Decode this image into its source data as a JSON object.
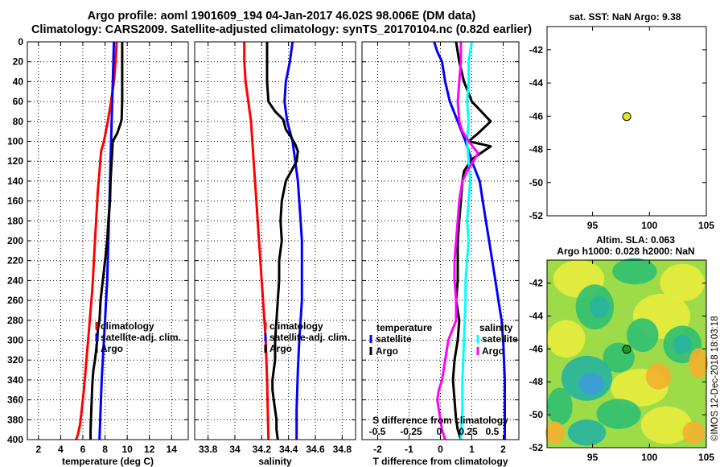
{
  "titles": {
    "line1": "Argo profile: aoml 1901609_194 04-Jan-2017 46.02S 98.006E (DM data)",
    "line2": "Climatology: CARS2009. Satellite-adjusted climatology: synTS_20170104.nc (0.82d earlier)"
  },
  "chart_data": [
    {
      "id": "temperature",
      "type": "line",
      "xlabel": "temperature (deg C)",
      "ylabel": "",
      "xlim": [
        1,
        15.5
      ],
      "ylim": [
        0,
        400
      ],
      "xticks": [
        2,
        4,
        6,
        8,
        10,
        12,
        14
      ],
      "yticks": [
        0,
        20,
        40,
        60,
        80,
        100,
        120,
        140,
        160,
        180,
        200,
        220,
        240,
        260,
        280,
        300,
        320,
        340,
        360,
        380,
        400
      ],
      "grid": true,
      "legend": {
        "placement": "center-right",
        "entries": [
          "climatology",
          "satellite-adj. clim.",
          "Argo"
        ],
        "colors": [
          "#ff0000",
          "#0000ff",
          "#000000"
        ]
      },
      "series": [
        {
          "name": "climatology",
          "color": "#ff0000",
          "x": [
            9.05,
            8.95,
            8.8,
            8.55,
            8.25,
            7.9,
            7.65,
            7.5,
            7.35,
            7.25,
            7.15,
            7.05,
            6.95,
            6.85,
            6.7,
            6.55,
            6.4,
            6.25,
            6.1,
            5.9,
            5.75,
            5.55,
            5.4
          ],
          "y": [
            0,
            20,
            40,
            60,
            80,
            100,
            110,
            130,
            150,
            170,
            190,
            210,
            230,
            250,
            270,
            290,
            310,
            330,
            350,
            370,
            385,
            395,
            400
          ]
        },
        {
          "name": "satellite-adj. clim.",
          "color": "#0000ff",
          "x": [
            8.8,
            8.75,
            8.7,
            8.65,
            8.6,
            8.55,
            8.5,
            8.45,
            8.4,
            8.35,
            8.3,
            8.25,
            8.2,
            8.1,
            8.0,
            7.9,
            7.8,
            7.7,
            7.6,
            7.5
          ],
          "y": [
            0,
            20,
            40,
            60,
            80,
            100,
            120,
            140,
            160,
            180,
            200,
            220,
            240,
            260,
            280,
            300,
            320,
            340,
            370,
            400
          ]
        },
        {
          "name": "Argo",
          "color": "#000000",
          "x": [
            9.55,
            9.55,
            9.55,
            9.55,
            9.5,
            9.4,
            9.1,
            8.7,
            8.6,
            8.5,
            8.45,
            8.3,
            8.2,
            8.0,
            7.8,
            7.6,
            7.5,
            7.35,
            7.3,
            7.2,
            7.1,
            6.95,
            6.85,
            6.8,
            6.75,
            6.7,
            6.7
          ],
          "y": [
            0,
            20,
            40,
            60,
            78,
            82,
            92,
            100,
            120,
            140,
            160,
            180,
            200,
            220,
            240,
            260,
            280,
            290,
            300,
            310,
            320,
            330,
            345,
            360,
            375,
            390,
            400
          ]
        }
      ]
    },
    {
      "id": "salinity",
      "type": "line",
      "xlabel": "salinity",
      "ylabel": "",
      "xlim": [
        33.7,
        34.9
      ],
      "ylim": [
        0,
        400
      ],
      "xticks": [
        33.8,
        34,
        34.2,
        34.4,
        34.6,
        34.8
      ],
      "grid": true,
      "legend": {
        "placement": "center-right",
        "entries": [
          "climatology",
          "satellite-adj. clim.",
          "Argo"
        ],
        "colors": [
          "#ff0000",
          "#0000ff",
          "#000000"
        ]
      },
      "series": [
        {
          "name": "climatology",
          "color": "#ff0000",
          "x": [
            34.07,
            34.07,
            34.08,
            34.1,
            34.12,
            34.13,
            34.14,
            34.15,
            34.16,
            34.17,
            34.18,
            34.19,
            34.2,
            34.21,
            34.22,
            34.23,
            34.24,
            34.25
          ],
          "y": [
            0,
            20,
            40,
            60,
            80,
            100,
            120,
            140,
            160,
            180,
            200,
            220,
            240,
            260,
            280,
            300,
            340,
            400
          ]
        },
        {
          "name": "satellite-adj. clim.",
          "color": "#0000ff",
          "x": [
            34.43,
            34.41,
            34.38,
            34.37,
            34.39,
            34.43,
            34.45,
            34.47,
            34.48,
            34.49,
            34.5,
            34.5,
            34.5,
            34.5,
            34.49,
            34.48,
            34.47,
            34.46,
            34.46
          ],
          "y": [
            0,
            20,
            40,
            60,
            80,
            100,
            120,
            140,
            160,
            180,
            200,
            220,
            240,
            260,
            280,
            300,
            330,
            370,
            400
          ]
        },
        {
          "name": "Argo",
          "color": "#000000",
          "x": [
            34.24,
            34.24,
            34.24,
            34.24,
            34.25,
            34.3,
            34.36,
            34.38,
            34.4,
            34.42,
            34.45,
            34.47,
            34.46,
            34.42,
            34.38,
            34.35,
            34.34,
            34.35,
            34.33,
            34.33,
            34.32,
            34.31,
            34.3,
            34.3,
            34.29,
            34.28,
            34.28,
            34.29,
            34.3,
            34.31,
            34.31,
            34.32
          ],
          "y": [
            0,
            10,
            20,
            40,
            60,
            70,
            78,
            88,
            92,
            96,
            103,
            110,
            120,
            130,
            140,
            160,
            180,
            200,
            220,
            240,
            260,
            280,
            300,
            320,
            330,
            340,
            350,
            360,
            370,
            380,
            390,
            400
          ]
        }
      ]
    },
    {
      "id": "difference",
      "type": "line",
      "xlabel": "T difference from climatology",
      "ylabel": "",
      "x2label": "S difference from climatology",
      "xlim": [
        -2.5,
        2.5
      ],
      "ylim": [
        0,
        400
      ],
      "xticks": [
        -2,
        -1,
        0,
        1,
        2
      ],
      "x2ticks": [
        "-0.5",
        "-0.25",
        "0",
        "0.25",
        "0.5"
      ],
      "grid": true,
      "legend_temperature": {
        "placement": "center-left",
        "heading": "temperature",
        "entries": [
          "satellite",
          "Argo"
        ],
        "colors": [
          "#0000ff",
          "#000000"
        ]
      },
      "legend_salinity": {
        "placement": "center-right",
        "heading": "salinity",
        "entries": [
          "satellite",
          "Argo"
        ],
        "colors": [
          "#00ffff",
          "#ff00ff"
        ]
      },
      "series": [
        {
          "name": "temperature satellite",
          "color": "#0000ff",
          "x": [
            -0.2,
            -0.1,
            0.05,
            0.15,
            0.3,
            0.55,
            0.8,
            1.0,
            1.25,
            1.35,
            1.45,
            1.55,
            1.65,
            1.75,
            1.85,
            1.95,
            2.0,
            2.05,
            2.05
          ],
          "y": [
            0,
            10,
            20,
            40,
            60,
            80,
            100,
            120,
            140,
            160,
            180,
            200,
            220,
            240,
            260,
            280,
            300,
            340,
            400
          ]
        },
        {
          "name": "temperature Argo",
          "color": "#000000",
          "x": [
            0.5,
            0.6,
            0.75,
            1.0,
            1.3,
            1.6,
            1.2,
            0.9,
            1.6,
            1.0,
            0.75,
            0.7,
            0.65,
            0.6,
            0.55,
            0.55,
            0.55,
            0.5,
            0.6,
            0.55,
            0.5,
            0.45,
            0.4,
            0.45,
            0.5,
            0.55,
            0.65
          ],
          "y": [
            0,
            20,
            40,
            60,
            70,
            80,
            92,
            100,
            105,
            118,
            130,
            140,
            160,
            180,
            200,
            220,
            240,
            260,
            280,
            300,
            310,
            320,
            340,
            360,
            380,
            390,
            400
          ]
        },
        {
          "name": "salinity satellite",
          "color": "#00ffff",
          "x": [
            1.0,
            0.9,
            0.9,
            0.85,
            0.9,
            0.85,
            0.9,
            0.95,
            0.9,
            0.85,
            0.9,
            0.85,
            0.8,
            0.8,
            0.75,
            0.7,
            0.7,
            0.65
          ],
          "y": [
            0,
            20,
            40,
            60,
            80,
            100,
            120,
            140,
            160,
            180,
            200,
            220,
            240,
            260,
            300,
            340,
            370,
            400
          ]
        },
        {
          "name": "salinity Argo",
          "color": "#ff00ff",
          "x": [
            0.65,
            0.65,
            0.6,
            0.55,
            0.6,
            0.7,
            0.9,
            1.2,
            0.85,
            0.7,
            0.6,
            0.55,
            0.5,
            0.45,
            0.45,
            0.5,
            0.5,
            0.25,
            0.15,
            0.05,
            -0.05,
            -0.1,
            -0.05,
            0.0,
            0.05,
            0.1,
            0.15
          ],
          "y": [
            0,
            20,
            40,
            60,
            80,
            90,
            100,
            112,
            130,
            140,
            160,
            180,
            200,
            220,
            240,
            260,
            280,
            300,
            320,
            340,
            350,
            360,
            370,
            380,
            390,
            395,
            400
          ]
        }
      ]
    },
    {
      "id": "sst_map",
      "type": "scatter",
      "title": "sat. SST: NaN Argo: 9.38",
      "xlim": [
        91,
        105
      ],
      "ylim": [
        -52,
        -40.6
      ],
      "xticks": [
        95,
        100,
        105
      ],
      "yticks": [
        -42,
        -44,
        -46,
        -48,
        -50,
        -52
      ],
      "grid": false,
      "marker": {
        "lon": 98.006,
        "lat": -46.02,
        "color": "#e6e61e"
      }
    },
    {
      "id": "sla_map",
      "type": "heatmap",
      "title_line1": "Altim. SLA: 0.063",
      "title_line2": "Argo h1000: 0.028 h2000: NaN",
      "xlim": [
        91,
        105
      ],
      "ylim": [
        -52,
        -40.6
      ],
      "xticks": [
        95,
        100,
        105
      ],
      "yticks": [
        -42,
        -44,
        -46,
        -48,
        -50,
        -52
      ],
      "grid": false,
      "marker": {
        "lon": 98.006,
        "lat": -46.02,
        "color": "#1e9a1e"
      },
      "colors": {
        "background": "#9ddc48",
        "yellow": "#e8ec3c",
        "orange": "#f4b030",
        "green": "#30c070",
        "teal": "#28b4a0",
        "blue": "#3c9cd8"
      }
    }
  ],
  "watermark": "©IMOS 12-Dec-2018 18:03:18"
}
